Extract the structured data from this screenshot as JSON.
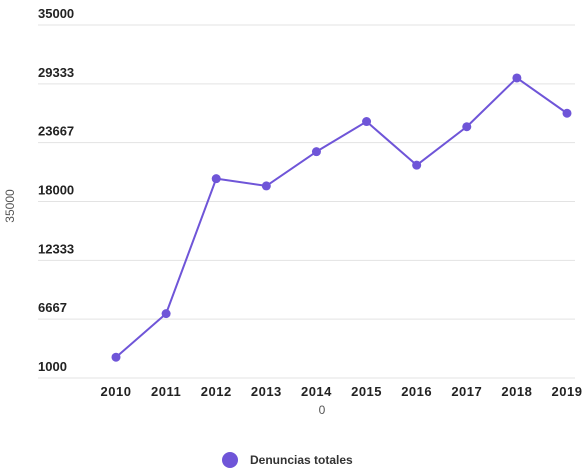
{
  "chart_data": {
    "type": "line",
    "x": [
      "2010",
      "2011",
      "2012",
      "2013",
      "2014",
      "2015",
      "2016",
      "2017",
      "2018",
      "2019"
    ],
    "series": [
      {
        "name": "Denuncias totales",
        "values": [
          3000,
          7200,
          20200,
          19500,
          22800,
          25700,
          21500,
          25200,
          29900,
          26500
        ]
      }
    ],
    "y_ticks": [
      "35000",
      "29333",
      "23667",
      "18000",
      "12333",
      "6667",
      "1000"
    ],
    "ylim": [
      1000,
      35000
    ],
    "xlabel": "0",
    "ylabel": "35000",
    "grid": "horizontal",
    "legend": "bottom-center",
    "colors": {
      "series": "#6f55d8",
      "grid": "#e3e3e3"
    }
  }
}
